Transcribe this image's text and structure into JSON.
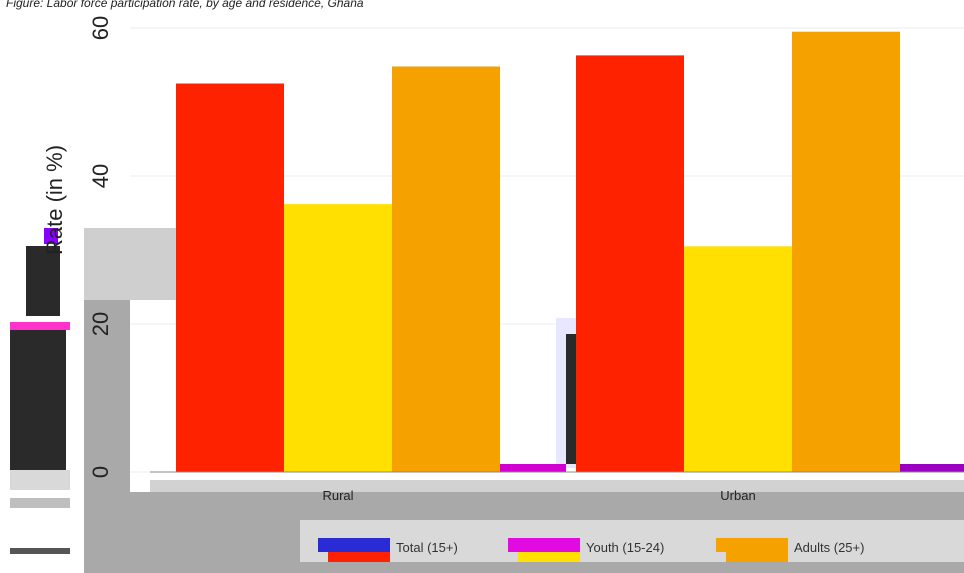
{
  "caption": "Figure: Labor force participation rate, by age and residence, Ghana",
  "chart_data": {
    "type": "bar",
    "title": "",
    "xlabel": "",
    "ylabel": "Rate (in %)",
    "ylim": [
      0,
      60
    ],
    "yticks": [
      "0",
      "20",
      "40",
      "60"
    ],
    "grid": true,
    "legend_position": "bottom",
    "categories": [
      "Rural",
      "Urban"
    ],
    "series": [
      {
        "name": "Total (15+)",
        "color": "#2b2bd6",
        "values": [
          52.5,
          56.3
        ]
      },
      {
        "name": "Youth (15-24)",
        "color": "#e10be1",
        "values": [
          36.2,
          30.5
        ]
      },
      {
        "name": "Adults (25+)",
        "color": "#f5a100",
        "values": [
          54.8,
          59.5
        ]
      }
    ],
    "bar_colors": [
      "#ff2200",
      "#ffe000",
      "#f5a100"
    ]
  }
}
